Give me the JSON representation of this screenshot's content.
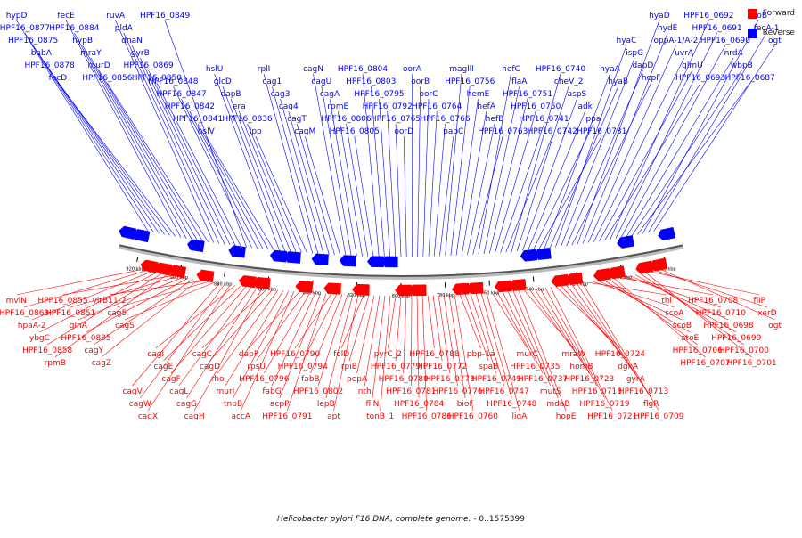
{
  "legend": {
    "forward_label": "Forward",
    "reverse_label": "Reverse",
    "forward_color": "#ff0000",
    "reverse_color": "#0000ff"
  },
  "caption": {
    "organism": "Helicobacter pylori F16 DNA, complete genome.",
    "range": " - 0..1575399"
  },
  "ticks": [
    "920 kbp",
    "900 kbp",
    "880 kbp",
    "860 kbp",
    "840 kbp",
    "820 kbp",
    "800 kbp",
    "780 kbp",
    "760 kbp",
    "740 kbp",
    "720 kbp",
    "700 kbp",
    "680 kbp"
  ],
  "reverse_genes": [
    "hypD",
    "HPF16_0877",
    "HPF16_0875",
    "babA",
    "HPF16_0878",
    "fecD",
    "fecE",
    "HPF16_0884",
    "hypB",
    "mraY",
    "murD",
    "HPF16_0856",
    "ruvA",
    "pldA",
    "dnaN",
    "gyrB",
    "HPF16_0869",
    "HPF16_0850",
    "HPF16_0849",
    "HPF16_0848",
    "HPF16_0847",
    "HPF16_0842",
    "HPF16_0841",
    "hslV",
    "hslU",
    "glcD",
    "dapB",
    "era",
    "HPF16_0836",
    "lpp",
    "rplI",
    "cag1",
    "cag3",
    "cag4",
    "cagT",
    "cagM",
    "cagN",
    "cagU",
    "cagA",
    "rpmE",
    "HPF16_0806",
    "HPF16_0805",
    "HPF16_0804",
    "HPF16_0803",
    "HPF16_0795",
    "HPF16_0792",
    "HPF16_0765",
    "oorD",
    "oorA",
    "oorB",
    "oorC",
    "HPF16_0764",
    "HPF16_0766",
    "pabC",
    "maglll",
    "HPF16_0756",
    "hemE",
    "hefA",
    "hefB",
    "HPF16_0763",
    "hefC",
    "flaA",
    "HPF16_0751",
    "HPF16_0750",
    "HPF16_0741",
    "HPF16_0742",
    "HPF16_0740",
    "cheV_2",
    "aspS",
    "adk",
    "ppa",
    "HPF16_0731",
    "hyaA",
    "hyaB",
    "hyaC",
    "ispG",
    "dapD",
    "hcpF",
    "hyaD",
    "hydE",
    "oppA-1/A-2",
    "uvrA",
    "glmU",
    "HPF16_0693",
    "HPF16_0692",
    "HPF16_0691",
    "HPF16_0690",
    "nrdA",
    "wbpB",
    "HPF16_0687",
    "feoB",
    "fecA-1",
    "ogt"
  ],
  "forward_genes": [
    "mviN",
    "HPF16_0863",
    "hpaA-2",
    "ybgC",
    "HPF16_0858",
    "rpmB",
    "HPF16_0855",
    "HPF16_0851",
    "glnA",
    "HPF16_0835",
    "cagY",
    "cagZ",
    "virB11-2",
    "cag5",
    "cagS",
    "cagV",
    "cagW",
    "cagX",
    "cagI",
    "cagE",
    "cagF",
    "cagL",
    "cagG",
    "cagH",
    "cagC",
    "cagD",
    "rho",
    "murI",
    "tnpB",
    "accA",
    "dapF",
    "rpsU",
    "HPF16_0796",
    "fabG",
    "acpP",
    "HPF16_0791",
    "HPF16_0790",
    "HPF16_0794",
    "fabB",
    "HPF16_0802",
    "lepB",
    "apt",
    "folD",
    "rpiB",
    "pepA",
    "nth",
    "fliN",
    "tonB_1",
    "pyrC_2",
    "HPF16_0779",
    "HPF16_0780",
    "HPF16_0781",
    "HPF16_0784",
    "HPF16_0786",
    "HPF16_0788",
    "HPF16_0772",
    "HPF16_0773",
    "HPF16_0776",
    "bioF",
    "HPF16_0760",
    "pbp-1a",
    "spaB",
    "HPF16_0749",
    "HPF16_0747",
    "HPF16_0748",
    "ligA",
    "murC",
    "HPF16_0735",
    "HPF16_0737",
    "mutS",
    "mdaB",
    "hopE",
    "mraW",
    "homB",
    "HPF16_0723",
    "HPF16_0718",
    "HPF16_0719",
    "HPF16_0721",
    "HPF16_0724",
    "dgkA",
    "gyrA",
    "HPF16_0713",
    "flgR",
    "HPF16_0709",
    "thl",
    "scoA",
    "scoB",
    "atoE",
    "HPF16_0706",
    "HPF16_0707",
    "HPF16_0708",
    "HPF16_0710",
    "HPF16_0698",
    "HPF16_0699",
    "HPF16_0700",
    "HPF16_0701",
    "fliP",
    "xerD",
    "ogt"
  ]
}
